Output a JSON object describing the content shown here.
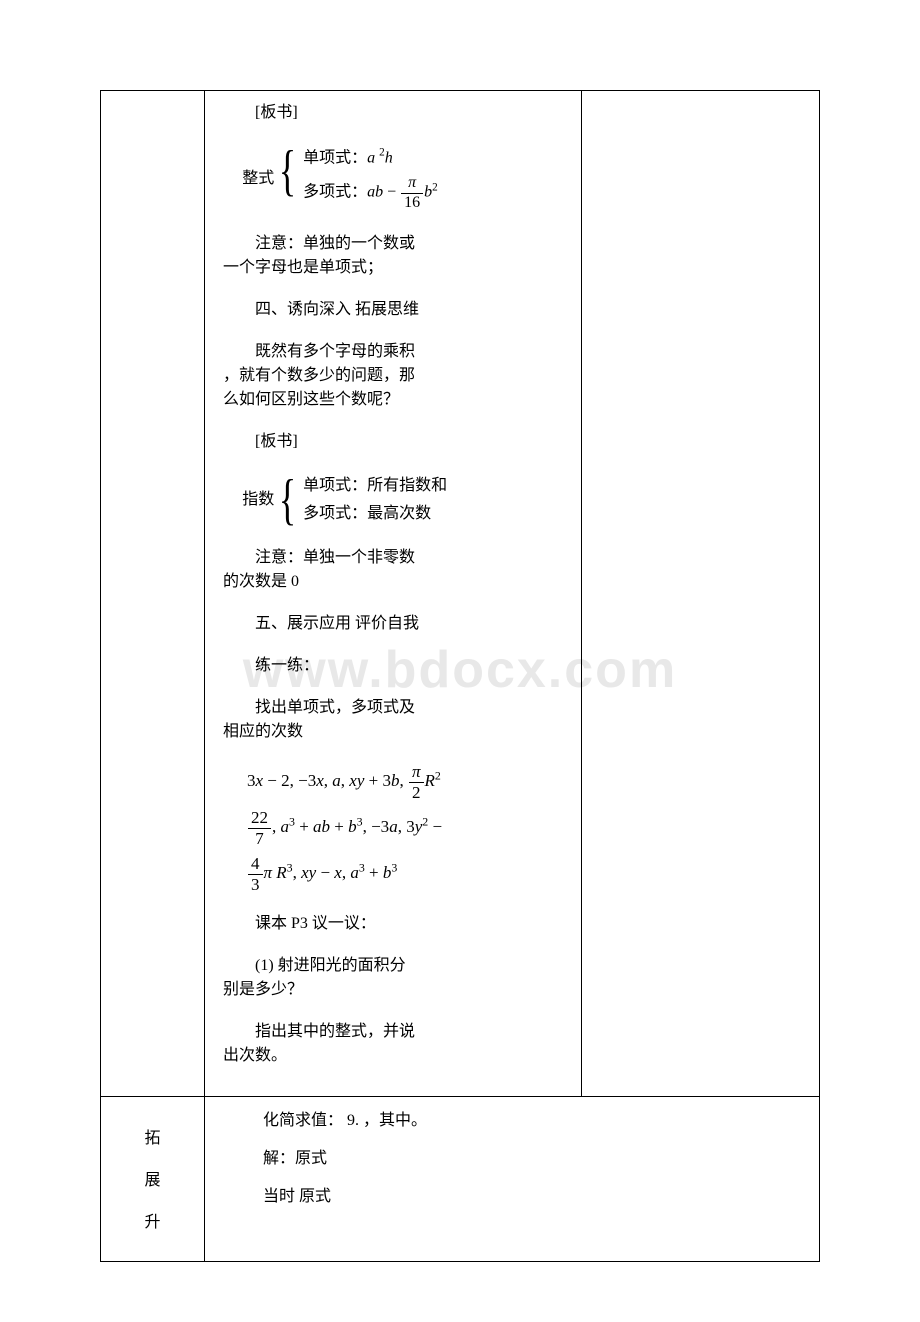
{
  "watermark": "www.bdocx.com",
  "row1": {
    "banshu1_label": "[板书]",
    "brace1": {
      "label": "整式",
      "item1_prefix": "单项式：",
      "item1_math": "a²h",
      "item2_prefix": "多项式：",
      "item2_math": "ab − (π/16) b²"
    },
    "note1_a": "注意：单独的一个数或",
    "note1_b": "一个字母也是单项式；",
    "heading4": "四、诱向深入 拓展思维",
    "q1_a": "既然有多个字母的乘积",
    "q1_b": "，就有个数多少的问题，那",
    "q1_c": "么如何区别这些个数呢？",
    "banshu2_label": "[板书]",
    "brace2": {
      "label": "指数",
      "item1": "单项式：所有指数和",
      "item2": "多项式：最高次数"
    },
    "note2_a": "注意：单独一个非零数",
    "note2_b": "的次数是 0",
    "heading5": "五、展示应用 评价自我",
    "lian": "练一练：",
    "find_a": "找出单项式，多项式及",
    "find_b": "相应的次数",
    "mathlines": {
      "l1": "3x − 2, −3x, a, xy + 3b, (π/2) R²",
      "l2": "(22/7), a³ + ab + b³, −3a, 3y² −",
      "l3": "(4/3) πR³, xy − x, a³ + b³"
    },
    "kb": "课本 P3 议一议：",
    "q2_a": "(1) 射进阳光的面积分",
    "q2_b": "别是多少？",
    "q3_a": "指出其中的整式，并说",
    "q3_b": "出次数。"
  },
  "row2": {
    "left": [
      "拓",
      "展",
      "升"
    ],
    "line1": "化简求值： 9. ，其中。",
    "line2": "解：原式",
    "line3": "当时 原式"
  }
}
